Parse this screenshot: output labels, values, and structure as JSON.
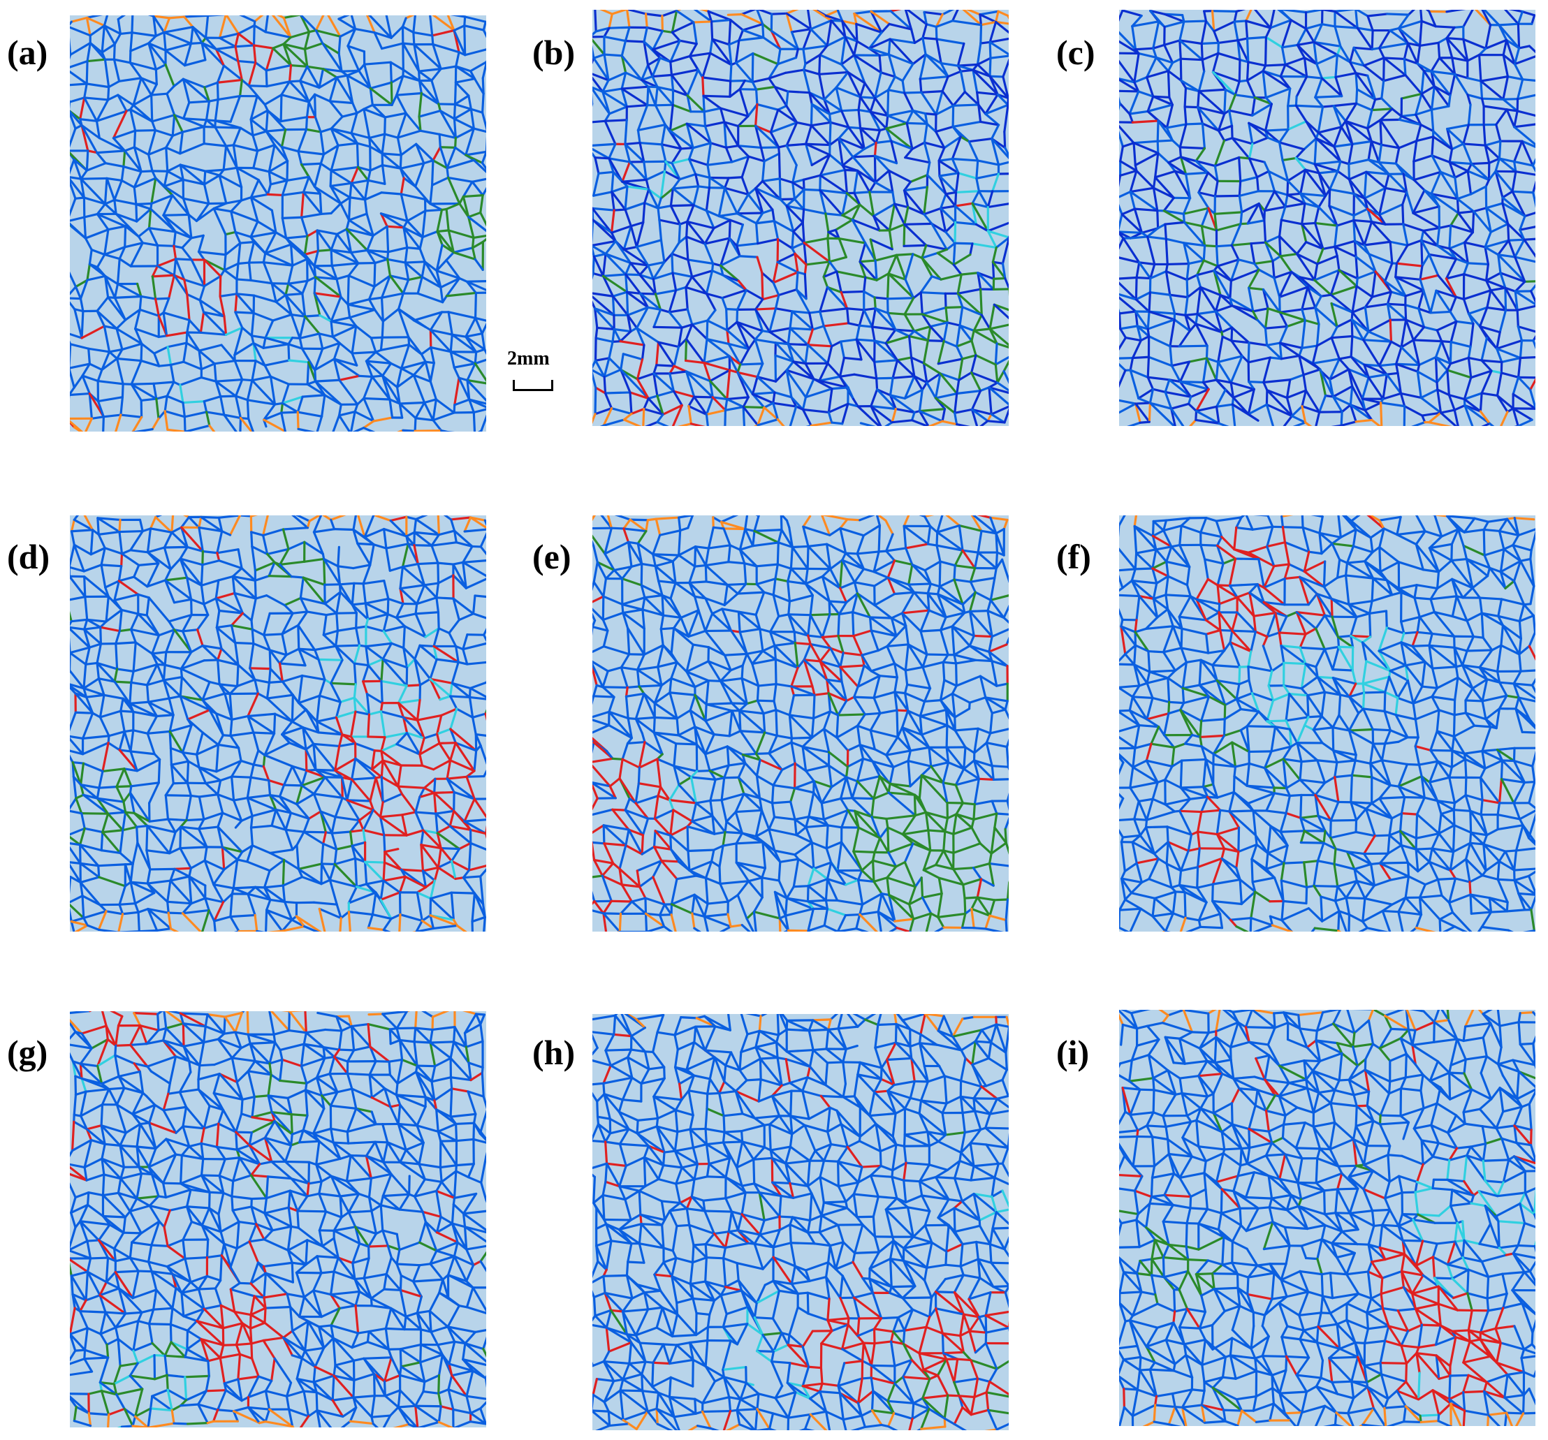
{
  "figure": {
    "panels": [
      {
        "label": "(a)"
      },
      {
        "label": "(b)"
      },
      {
        "label": "(c)"
      },
      {
        "label": "(d)"
      },
      {
        "label": "(e)"
      },
      {
        "label": "(f)"
      },
      {
        "label": "(g)"
      },
      {
        "label": "(h)"
      },
      {
        "label": "(i)"
      }
    ],
    "scale_bar": {
      "label": "2mm"
    }
  },
  "colors": {
    "background": "#b8d4ea",
    "blue_boundary": "#0a5fe0",
    "dark_blue_boundary": "#0a2fd0",
    "red_boundary": "#e02020",
    "green_boundary": "#2a8a2a",
    "orange_boundary": "#ff8a20",
    "cyan_boundary": "#30d0e0"
  }
}
